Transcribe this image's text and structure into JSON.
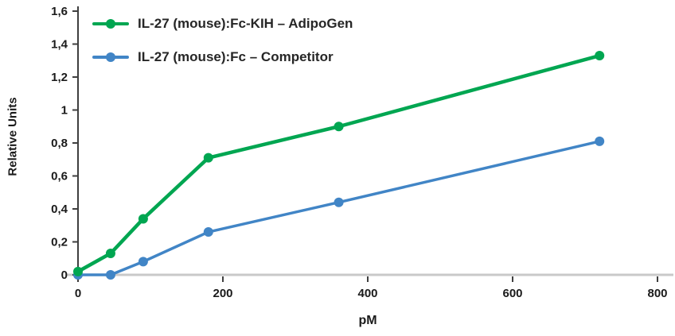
{
  "chart_data": {
    "type": "line",
    "title": "",
    "xlabel": "pM",
    "ylabel": "Relative Units",
    "x": [
      0,
      45,
      90,
      180,
      360,
      720
    ],
    "series": [
      {
        "name": "IL-27 (mouse):Fc-KIH – AdipoGen",
        "color": "#00A651",
        "values": [
          0.02,
          0.13,
          0.34,
          0.71,
          0.9,
          1.33
        ]
      },
      {
        "name": "IL-27 (mouse):Fc – Competitor",
        "color": "#4185C6",
        "values": [
          0.0,
          0.0,
          0.08,
          0.26,
          0.44,
          0.81
        ]
      }
    ],
    "xlim": [
      0,
      800
    ],
    "ylim": [
      0,
      1.6
    ],
    "x_ticks": {
      "values": [
        0,
        200,
        400,
        600,
        800
      ],
      "labels": [
        "0",
        "200",
        "400",
        "600",
        "800"
      ]
    },
    "y_ticks": {
      "values": [
        0,
        0.2,
        0.4,
        0.6,
        0.8,
        1.0,
        1.2,
        1.4,
        1.6
      ],
      "labels": [
        "0",
        "0,2",
        "0,4",
        "0,6",
        "0,8",
        "1",
        "1,2",
        "1,4",
        "1,6"
      ]
    },
    "grid": false,
    "legend_position": "top-left",
    "axis_color": "#3f3f3f",
    "baseline_color": "#c9c9c9"
  }
}
